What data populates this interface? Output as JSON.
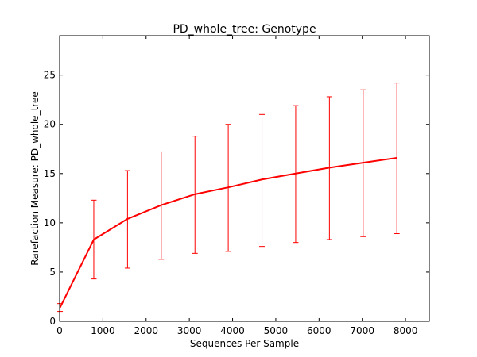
{
  "chart_data": {
    "type": "line",
    "title": "PD_whole_tree: Genotype",
    "xlabel": "Sequences Per Sample",
    "ylabel": "Rarefaction Measure: PD_whole_tree",
    "xlim": [
      0,
      8550
    ],
    "ylim": [
      0,
      29
    ],
    "x_ticks": [
      0,
      1000,
      2000,
      3000,
      4000,
      5000,
      6000,
      7000,
      8000
    ],
    "y_ticks": [
      0,
      5,
      10,
      15,
      20,
      25
    ],
    "grid": false,
    "series": [
      {
        "color": "#ff0000",
        "x": [
          10,
          790,
          1570,
          2350,
          3130,
          3900,
          4680,
          5460,
          6240,
          7020,
          7800
        ],
        "y": [
          1.4,
          8.3,
          10.4,
          11.8,
          12.9,
          13.6,
          14.4,
          15.0,
          15.6,
          16.1,
          16.6
        ],
        "error_low": [
          1.0,
          4.3,
          5.4,
          6.3,
          6.9,
          7.1,
          7.6,
          8.0,
          8.3,
          8.6,
          8.9
        ],
        "error_high": [
          1.8,
          12.3,
          15.3,
          17.2,
          18.8,
          20.0,
          21.0,
          21.9,
          22.8,
          23.5,
          24.2
        ]
      }
    ]
  }
}
